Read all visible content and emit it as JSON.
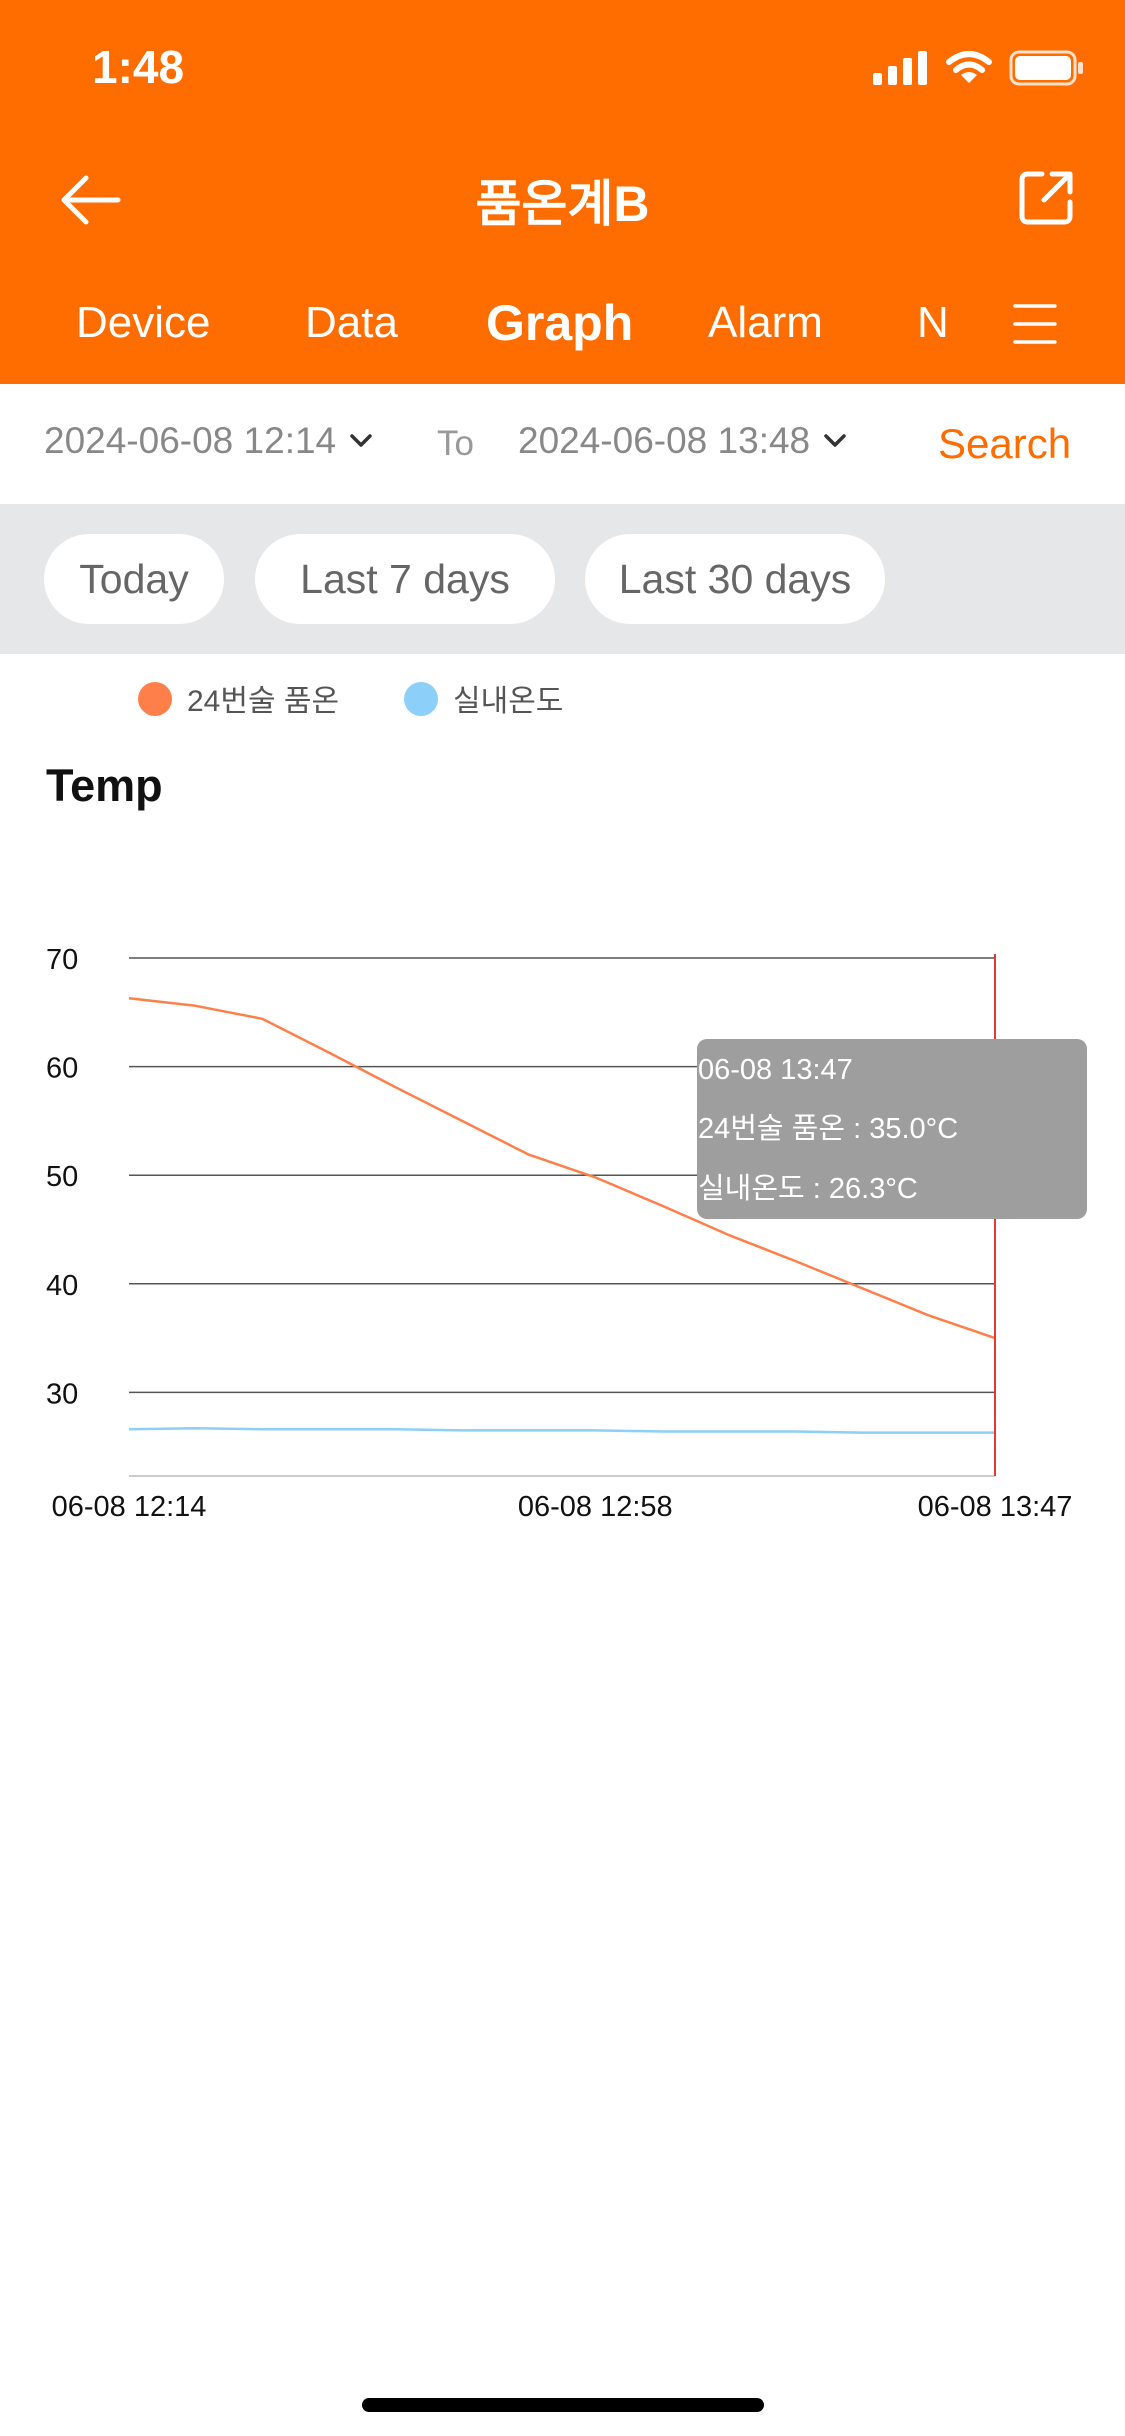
{
  "status_bar": {
    "time": "1:48"
  },
  "header": {
    "title": "품온계B"
  },
  "tabs": [
    {
      "label": "Device",
      "active": false
    },
    {
      "label": "Data",
      "active": false
    },
    {
      "label": "Graph",
      "active": true
    },
    {
      "label": "Alarm",
      "active": false
    },
    {
      "label": "N",
      "active": false
    }
  ],
  "date_range": {
    "from": "2024-06-08 12:14",
    "to_label": "To",
    "to": "2024-06-08 13:48",
    "search_label": "Search"
  },
  "quick_ranges": [
    "Today",
    "Last 7 days",
    "Last 30 days"
  ],
  "colors": {
    "accent": "#ff6c00",
    "series1": "#ff7f4a",
    "series2": "#8ccff8",
    "cursor": "#e53935",
    "tooltip_bg": "#9e9e9e"
  },
  "chart_data": {
    "type": "line",
    "title": "Temp",
    "x": [
      "06-08 12:14",
      "06-08 12:18",
      "06-08 12:24",
      "06-08 12:30",
      "06-08 12:36",
      "06-08 12:44",
      "06-08 12:52",
      "06-08 12:58",
      "06-08 13:06",
      "06-08 13:14",
      "06-08 13:22",
      "06-08 13:30",
      "06-08 13:38",
      "06-08 13:47"
    ],
    "x_tick_labels": [
      "06-08 12:14",
      "06-08 12:58",
      "06-08 13:47"
    ],
    "series": [
      {
        "name": "24번술 품온",
        "values": [
          66.3,
          65.6,
          64.4,
          61.3,
          58.1,
          55.0,
          51.9,
          49.8,
          47.2,
          44.5,
          42.1,
          39.6,
          37.1,
          35.0
        ]
      },
      {
        "name": "실내온도",
        "values": [
          26.6,
          26.7,
          26.6,
          26.6,
          26.6,
          26.5,
          26.5,
          26.5,
          26.4,
          26.4,
          26.4,
          26.3,
          26.3,
          26.3
        ]
      }
    ],
    "y_ticks": [
      30,
      40,
      50,
      60,
      70
    ],
    "ylim": [
      22.3,
      70
    ],
    "grid": true,
    "legend_position": "top-left",
    "tooltip": {
      "x": "06-08 13:47",
      "lines": [
        "24번술 품온 : 35.0°C",
        "실내온도 : 26.3°C"
      ]
    }
  }
}
